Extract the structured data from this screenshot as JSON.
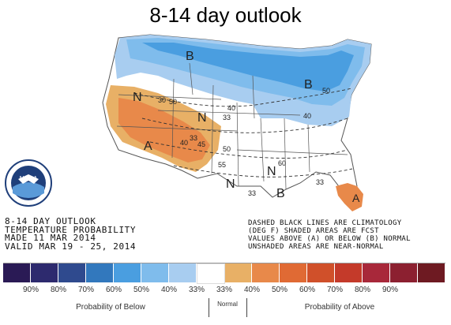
{
  "title": "8-14 day outlook",
  "product": {
    "line1": "8-14 DAY OUTLOOK",
    "line2": "TEMPERATURE PROBABILITY",
    "line3": "MADE  11 MAR 2014",
    "line4": "VALID  MAR 19 - 25, 2014"
  },
  "note": {
    "line1": "DASHED BLACK LINES ARE CLIMATOLOGY",
    "line2": "(DEG F) SHADED AREAS ARE FCST",
    "line3": "VALUES ABOVE (A) OR BELOW (B) NORMAL",
    "line4": "UNSHADED AREAS ARE NEAR-NORMAL"
  },
  "map_labels": {
    "below_1": "B",
    "below_2": "B",
    "below_3": "B",
    "above_1": "A",
    "above_2": "A",
    "normal_1": "N",
    "normal_2": "N",
    "normal_3": "N",
    "normal_4": "N",
    "c40a": "40",
    "c33a": "33",
    "c50a": "50",
    "c40b": "40",
    "c33b": "33",
    "c40c": "40",
    "c45": "45",
    "c55": "55",
    "c50b": "50",
    "c60": "60",
    "c33c": "33",
    "c33d": "33",
    "c50c": "50",
    "c30": "30"
  },
  "scale": {
    "colors": [
      "#2a1a55",
      "#2d2a6e",
      "#2f4a8e",
      "#3278bd",
      "#4a9ee0",
      "#7fbcec",
      "#a8cdf0",
      "#ffffff",
      "#e8b066",
      "#e8894a",
      "#e06a34",
      "#d0502a",
      "#c43a2a",
      "#a8283a",
      "#8c2030",
      "#6e1a22"
    ],
    "ticks": [
      "90%",
      "80%",
      "70%",
      "60%",
      "50%",
      "40%",
      "33%",
      "33%",
      "40%",
      "50%",
      "60%",
      "70%",
      "80%",
      "90%"
    ],
    "below_label": "Probability of Below",
    "normal_label": "Normal",
    "above_label": "Probability of Above"
  },
  "logo": {
    "text": "NOAA"
  }
}
